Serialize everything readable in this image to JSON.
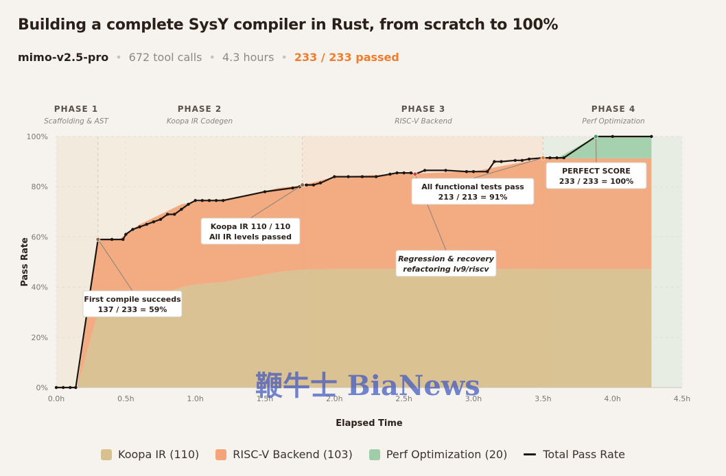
{
  "header": {
    "title": "Building a complete SysY compiler in Rust, from scratch to 100%",
    "model": "mimo-v2.5-pro",
    "tool_calls": "672 tool calls",
    "duration": "4.3 hours",
    "passed": "233 / 233 passed"
  },
  "watermark": "鞭牛士 BiaNews",
  "colors": {
    "koopa": "#d8c08f",
    "riscv": "#f3a478",
    "perf": "#9fcda8",
    "line": "#1c1512",
    "accent": "#ef7d2d",
    "background": "#f6f3ee"
  },
  "legend": [
    {
      "label": "Koopa IR (110)",
      "color": "#d8c08f",
      "kind": "swatch"
    },
    {
      "label": "RISC-V Backend (103)",
      "color": "#f3a478",
      "kind": "swatch"
    },
    {
      "label": "Perf Optimization (20)",
      "color": "#9fcda8",
      "kind": "swatch"
    },
    {
      "label": "Total Pass Rate",
      "color": "#1c1512",
      "kind": "line"
    }
  ],
  "chart_data": {
    "type": "area",
    "xlabel": "Elapsed Time",
    "ylabel": "Pass Rate",
    "xlim": [
      0,
      4.5
    ],
    "ylim": [
      0,
      100
    ],
    "xticks": [
      "0.0h",
      "0.5h",
      "1.0h",
      "1.5h",
      "2.0h",
      "2.5h",
      "3.0h",
      "3.5h",
      "4.0h",
      "4.5h"
    ],
    "yticks": [
      "0%",
      "20%",
      "40%",
      "60%",
      "80%",
      "100%"
    ],
    "phases": [
      {
        "name": "PHASE 1",
        "desc": "Scaffolding & AST",
        "start": 0,
        "end": 0.3
      },
      {
        "name": "PHASE 2",
        "desc": "Koopa IR Codegen",
        "start": 0.3,
        "end": 1.77
      },
      {
        "name": "PHASE 3",
        "desc": "RISC-V Backend",
        "start": 1.77,
        "end": 3.5
      },
      {
        "name": "PHASE 4",
        "desc": "Perf Optimization",
        "start": 3.5,
        "end": 4.5
      }
    ],
    "series": [
      {
        "name": "Koopa IR (110)",
        "x": [
          0,
          0.15,
          0.3,
          0.45,
          0.6,
          0.75,
          0.9,
          1.0,
          1.2,
          1.4,
          1.6,
          1.77,
          2.0,
          2.5,
          3.0,
          3.5,
          3.6,
          4.0,
          4.28
        ],
        "y": [
          0,
          0,
          30,
          32,
          35,
          37,
          40,
          41,
          42,
          44,
          46,
          47,
          47.2,
          47.2,
          47.2,
          47.2,
          47.2,
          47.2,
          47.2
        ]
      },
      {
        "name": "RISC-V Backend (103)",
        "x": [
          0,
          0.15,
          0.3,
          0.45,
          0.6,
          0.75,
          0.9,
          1.0,
          1.2,
          1.4,
          1.6,
          1.77,
          2.0,
          2.5,
          3.0,
          3.5,
          3.6,
          4.0,
          4.28
        ],
        "y": [
          0,
          0,
          29,
          27,
          30,
          32,
          33,
          33,
          33,
          33,
          33.5,
          33.5,
          36.8,
          37.9,
          38.9,
          44.1,
          44.1,
          44.1,
          44.1
        ]
      },
      {
        "name": "Perf Optimization (20)",
        "x": [
          0,
          3.5,
          3.6,
          3.88,
          4.28
        ],
        "y": [
          0,
          0,
          0,
          8.7,
          8.7
        ]
      },
      {
        "name": "Total Pass Rate",
        "x": [
          0,
          0.05,
          0.1,
          0.14,
          0.3,
          0.4,
          0.48,
          0.5,
          0.55,
          0.6,
          0.65,
          0.7,
          0.75,
          0.8,
          0.85,
          0.9,
          0.95,
          1.0,
          1.05,
          1.1,
          1.15,
          1.2,
          1.5,
          1.7,
          1.75,
          1.77,
          1.8,
          1.85,
          1.9,
          2.0,
          2.1,
          2.2,
          2.3,
          2.4,
          2.45,
          2.5,
          2.55,
          2.58,
          2.65,
          2.8,
          2.95,
          3.0,
          3.1,
          3.15,
          3.2,
          3.3,
          3.35,
          3.4,
          3.5,
          3.55,
          3.6,
          3.65,
          3.88,
          4.0,
          4.28
        ],
        "y": [
          0,
          0,
          0,
          0,
          59,
          59,
          59,
          61,
          63,
          64,
          65,
          66,
          67,
          69,
          69,
          71,
          73,
          74.5,
          74.5,
          74.5,
          74.5,
          74.5,
          78,
          79.5,
          80,
          80.7,
          80.7,
          80.7,
          81.5,
          84,
          84,
          84,
          84,
          85,
          85.5,
          85.5,
          85.5,
          85,
          86.5,
          86.5,
          86,
          86,
          86,
          90,
          90,
          90.5,
          90.5,
          91,
          91.5,
          91.5,
          91.5,
          91.5,
          100,
          100,
          100
        ]
      }
    ],
    "annotations": [
      {
        "id": "first-compile",
        "lines": [
          "First compile succeeds",
          "137 / 233 = 59%"
        ],
        "x": 0.3,
        "y": 59,
        "italic": false,
        "dot_color": "#8e6a3e"
      },
      {
        "id": "koopa-levels",
        "lines": [
          "Koopa IR 110 / 110",
          "All IR levels passed"
        ],
        "x": 1.77,
        "y": 80.7,
        "italic": false,
        "dot_color": "#8e6a3e"
      },
      {
        "id": "regression",
        "lines": [
          "Regression & recovery",
          "refactoring lv9/riscv"
        ],
        "x": 2.58,
        "y": 85,
        "italic": true,
        "dot_color": "#d9403a"
      },
      {
        "id": "all-functional",
        "lines": [
          "All functional tests pass",
          "213 / 213 = 91%"
        ],
        "x": 3.5,
        "y": 91.5,
        "italic": false,
        "dot_color": "#e3772e"
      },
      {
        "id": "perfect-score",
        "lines": [
          "PERFECT SCORE",
          "233 / 233 = 100%"
        ],
        "x": 3.88,
        "y": 100,
        "italic": false,
        "dot_color": "#4b9f64"
      }
    ],
    "grid": true,
    "legend_position": "bottom"
  }
}
